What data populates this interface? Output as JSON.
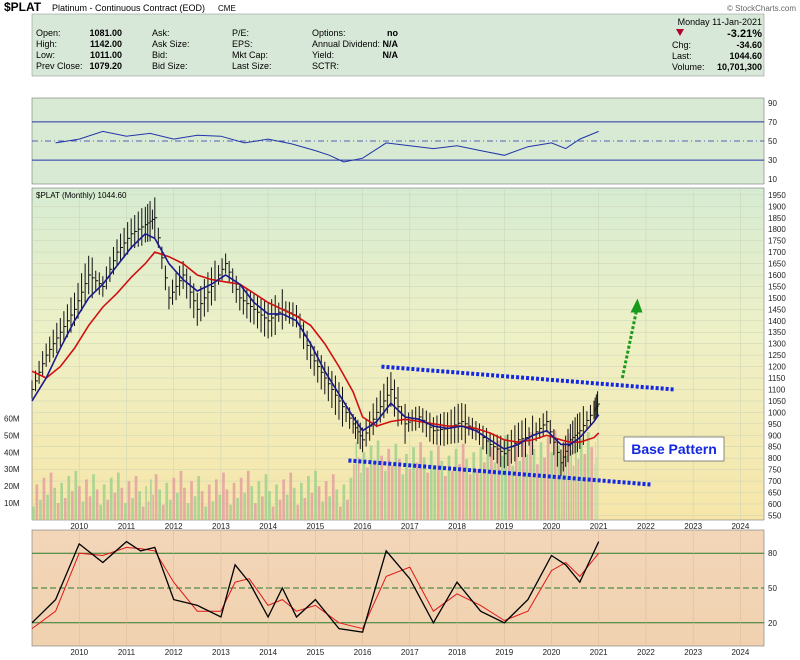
{
  "header": {
    "symbol": "$PLAT",
    "name": "Platinum - Continuous Contract (EOD)",
    "exchange": "CME",
    "watermark": "© StockCharts.com",
    "fields": [
      {
        "label": "Open:",
        "value": "1081.00"
      },
      {
        "label": "High:",
        "value": "1142.00"
      },
      {
        "label": "Low:",
        "value": "1011.00"
      },
      {
        "label": "Prev Close:",
        "value": "1079.20"
      }
    ],
    "fields2": [
      {
        "label": "Ask:",
        "value": ""
      },
      {
        "label": "Ask Size:",
        "value": ""
      },
      {
        "label": "Bid:",
        "value": ""
      },
      {
        "label": "Bid Size:",
        "value": ""
      }
    ],
    "fields3": [
      {
        "label": "P/E:",
        "value": ""
      },
      {
        "label": "EPS:",
        "value": ""
      },
      {
        "label": "Mkt Cap:",
        "value": ""
      },
      {
        "label": "Last Size:",
        "value": ""
      }
    ],
    "fields4": [
      {
        "label": "Options:",
        "value": "no"
      },
      {
        "label": "Annual Dividend:",
        "value": "N/A"
      },
      {
        "label": "Yield:",
        "value": "N/A"
      },
      {
        "label": "SCTR:",
        "value": ""
      }
    ],
    "date": "Monday  11-Jan-2021",
    "change_pct": "-3.21%",
    "change_color": "#b0002a",
    "chg_label": "Chg:",
    "chg_value": "-34.60",
    "last_label": "Last:",
    "last_value": "1044.60",
    "volume_label": "Volume:",
    "volume_value": "10,701,300"
  },
  "chart_data": [
    {
      "type": "line",
      "panel": "upper-oscillator",
      "y_ticks": [
        10,
        30,
        50,
        70,
        90
      ],
      "ylim": [
        5,
        95
      ],
      "reference_lines": [
        30,
        50,
        70
      ],
      "x": [
        2009.5,
        2010,
        2010.5,
        2011,
        2011.5,
        2012,
        2012.5,
        2013,
        2013.5,
        2014,
        2014.5,
        2015,
        2015.3,
        2015.6,
        2016,
        2016.5,
        2017,
        2017.5,
        2018,
        2018.5,
        2019,
        2019.5,
        2020,
        2020.3,
        2020.6,
        2021
      ],
      "values": [
        48,
        52,
        60,
        55,
        58,
        52,
        56,
        55,
        48,
        52,
        47,
        40,
        35,
        28,
        32,
        48,
        45,
        42,
        45,
        40,
        35,
        44,
        48,
        42,
        52,
        60
      ]
    },
    {
      "type": "line",
      "panel": "price",
      "title": "$PLAT (Monthly) 1044.60",
      "y_ticks": [
        550,
        600,
        650,
        700,
        750,
        800,
        850,
        900,
        950,
        1000,
        1050,
        1100,
        1150,
        1200,
        1250,
        1300,
        1350,
        1400,
        1450,
        1500,
        1550,
        1600,
        1650,
        1700,
        1750,
        1800,
        1850,
        1900,
        1950
      ],
      "ylim": [
        530,
        1980
      ],
      "x_ticks": [
        "2010",
        "2011",
        "2012",
        "2013",
        "2014",
        "2015",
        "2016",
        "2017",
        "2018",
        "2019",
        "2020",
        "2021",
        "2022",
        "2023",
        "2024"
      ],
      "xlim": [
        2009.0,
        2024.5
      ],
      "price_x": [
        2009.0,
        2009.3,
        2009.6,
        2009.9,
        2010.2,
        2010.5,
        2010.8,
        2011.1,
        2011.4,
        2011.6,
        2011.9,
        2012.2,
        2012.5,
        2012.8,
        2013.1,
        2013.4,
        2013.7,
        2014.0,
        2014.3,
        2014.6,
        2014.9,
        2015.2,
        2015.5,
        2015.8,
        2016.0,
        2016.3,
        2016.6,
        2016.9,
        2017.2,
        2017.5,
        2017.8,
        2018.1,
        2018.4,
        2018.7,
        2019.0,
        2019.3,
        2019.6,
        2019.9,
        2020.2,
        2020.4,
        2020.6,
        2020.9,
        2021.0
      ],
      "price": [
        1100,
        1250,
        1350,
        1450,
        1600,
        1550,
        1700,
        1780,
        1820,
        1850,
        1500,
        1600,
        1450,
        1550,
        1650,
        1500,
        1450,
        1400,
        1450,
        1420,
        1250,
        1150,
        1050,
        950,
        880,
        1000,
        1100,
        950,
        980,
        920,
        930,
        960,
        920,
        860,
        820,
        880,
        900,
        960,
        780,
        880,
        920,
        1010,
        1045
      ],
      "ma_fast": [
        1050,
        1150,
        1280,
        1400,
        1500,
        1560,
        1640,
        1720,
        1780,
        1760,
        1650,
        1580,
        1530,
        1560,
        1600,
        1560,
        1480,
        1430,
        1430,
        1400,
        1300,
        1180,
        1080,
        980,
        920,
        960,
        1040,
        980,
        970,
        940,
        930,
        940,
        920,
        880,
        840,
        860,
        900,
        920,
        860,
        860,
        890,
        960,
        990
      ],
      "ma_slow": [
        1180,
        1150,
        1200,
        1280,
        1380,
        1460,
        1520,
        1590,
        1650,
        1700,
        1680,
        1650,
        1600,
        1580,
        1570,
        1560,
        1520,
        1480,
        1450,
        1420,
        1380,
        1300,
        1200,
        1090,
        980,
        940,
        960,
        970,
        960,
        950,
        940,
        940,
        930,
        910,
        880,
        870,
        880,
        900,
        880,
        870,
        870,
        890,
        910
      ],
      "volume_ticks": [
        "10M",
        "20M",
        "30M",
        "40M",
        "50M",
        "60M"
      ],
      "volume_label_values": [
        10,
        20,
        30,
        40,
        50,
        60
      ],
      "volume_max": 65,
      "annotation": "Base Pattern",
      "channel_upper": [
        [
          2016.4,
          1200
        ],
        [
          2022.6,
          1100
        ]
      ],
      "channel_lower": [
        [
          2015.7,
          790
        ],
        [
          2022.1,
          685
        ]
      ],
      "breakout_arrow": [
        [
          2021.5,
          1150
        ],
        [
          2021.8,
          1480
        ]
      ]
    },
    {
      "type": "line",
      "panel": "lower-oscillator",
      "y_ticks": [
        20,
        50,
        80
      ],
      "ylim": [
        0,
        100
      ],
      "reference_lines": [
        20,
        50,
        80
      ],
      "x": [
        2009.0,
        2009.5,
        2010.0,
        2010.5,
        2011.0,
        2011.3,
        2011.6,
        2012.0,
        2012.5,
        2013.0,
        2013.3,
        2013.6,
        2014.0,
        2014.3,
        2014.6,
        2015.0,
        2015.5,
        2016.0,
        2016.5,
        2017.0,
        2017.5,
        2018.0,
        2018.5,
        2019.0,
        2019.5,
        2020.0,
        2020.3,
        2020.6,
        2021.0
      ],
      "fast": [
        20,
        40,
        88,
        72,
        90,
        82,
        85,
        40,
        35,
        25,
        70,
        55,
        25,
        50,
        25,
        40,
        15,
        12,
        82,
        58,
        20,
        55,
        30,
        20,
        40,
        78,
        70,
        55,
        90
      ],
      "slow": [
        15,
        30,
        80,
        78,
        85,
        84,
        82,
        55,
        30,
        30,
        55,
        58,
        35,
        40,
        30,
        35,
        20,
        15,
        60,
        68,
        30,
        45,
        35,
        22,
        30,
        65,
        72,
        60,
        80
      ]
    }
  ]
}
